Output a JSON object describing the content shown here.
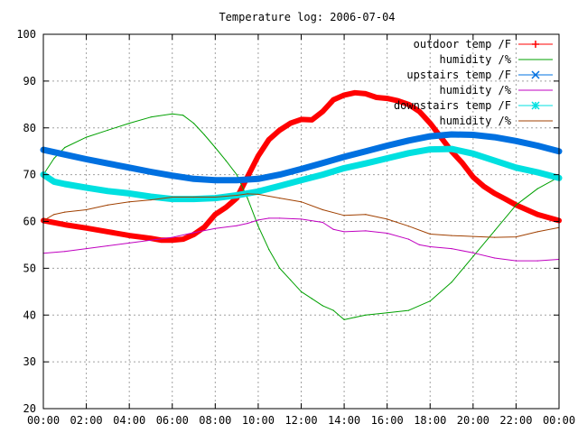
{
  "chart_data": {
    "type": "line",
    "title": "Temperature log: 2006-07-04",
    "xlabel": "",
    "ylabel": "",
    "xlim": [
      0,
      24
    ],
    "ylim": [
      20,
      100
    ],
    "grid": true,
    "legend_position": "top-right",
    "x_ticks": [
      "00:00",
      "02:00",
      "04:00",
      "06:00",
      "08:00",
      "10:00",
      "12:00",
      "14:00",
      "16:00",
      "18:00",
      "20:00",
      "22:00",
      "00:00"
    ],
    "y_ticks": [
      20,
      30,
      40,
      50,
      60,
      70,
      80,
      90,
      100
    ],
    "series": [
      {
        "name": "outdoor temp /F",
        "color": "#ff0000",
        "marker": "plus",
        "x": [
          0,
          1,
          2,
          3,
          4,
          5,
          5.5,
          6,
          6.5,
          7,
          7.5,
          8,
          8.5,
          9,
          9.5,
          10,
          10.5,
          11,
          11.5,
          12,
          12.5,
          13,
          13.5,
          14,
          14.5,
          15,
          15.5,
          16,
          16.5,
          17,
          17.5,
          18,
          18.5,
          19,
          19.5,
          20,
          20.5,
          21,
          21.5,
          22,
          23,
          24
        ],
        "values": [
          60.2,
          59.3,
          58.6,
          57.8,
          57,
          56.4,
          56,
          56,
          56.2,
          57.2,
          58.8,
          61.5,
          63,
          65,
          69.5,
          74,
          77.5,
          79.5,
          81,
          81.8,
          81.7,
          83.5,
          86,
          87,
          87.5,
          87.3,
          86.5,
          86.3,
          85.8,
          85,
          83.5,
          81,
          78,
          75,
          72.5,
          69.5,
          67.5,
          66,
          64.8,
          63.5,
          61.5,
          60.2
        ]
      },
      {
        "name": "humidity /%",
        "color": "#00a000",
        "marker": "none",
        "x": [
          0,
          0.5,
          1,
          2,
          3,
          4,
          5,
          6,
          6.5,
          7,
          7.5,
          8,
          8.5,
          9,
          9.5,
          10,
          10.5,
          11,
          11.5,
          12,
          12.5,
          13,
          13.5,
          14,
          14.5,
          15,
          16,
          17,
          18,
          19,
          20,
          21,
          22,
          23,
          24
        ],
        "values": [
          70,
          73.5,
          75.8,
          78,
          79.5,
          81,
          82.3,
          83,
          82.7,
          81,
          78.5,
          75.8,
          73,
          70,
          65,
          59,
          54,
          50,
          47.5,
          45,
          43.5,
          42,
          41,
          39,
          39.5,
          40,
          40.5,
          41,
          43,
          47,
          52.5,
          58,
          63.5,
          67,
          69.5
        ]
      },
      {
        "name": "upstairs temp /F",
        "color": "#0070e0",
        "marker": "cross",
        "x": [
          0,
          1,
          2,
          3,
          4,
          5,
          6,
          7,
          8,
          9,
          10,
          11,
          12,
          13,
          14,
          15,
          16,
          17,
          18,
          19,
          20,
          21,
          22,
          23,
          24
        ],
        "values": [
          75.3,
          74.3,
          73.3,
          72.4,
          71.5,
          70.6,
          69.8,
          69.1,
          68.8,
          68.8,
          69.1,
          70,
          71.2,
          72.5,
          73.8,
          75,
          76.2,
          77.3,
          78.2,
          78.6,
          78.5,
          78,
          77.2,
          76.2,
          75
        ]
      },
      {
        "name": "humidity /%",
        "color": "#c000c0",
        "marker": "none",
        "x": [
          0,
          1,
          2,
          3,
          4,
          5,
          6,
          7,
          8,
          9,
          9.5,
          10,
          10.5,
          11,
          12,
          13,
          13.5,
          14,
          15,
          16,
          17,
          17.5,
          18,
          19,
          20,
          21,
          22,
          23,
          24
        ],
        "values": [
          53.2,
          53.6,
          54.2,
          54.8,
          55.4,
          56,
          56.6,
          57.6,
          58.5,
          59.1,
          59.6,
          60.3,
          60.7,
          60.7,
          60.5,
          59.8,
          58.3,
          57.8,
          58,
          57.5,
          56.2,
          55,
          54.6,
          54.2,
          53.3,
          52.2,
          51.6,
          51.6,
          51.9
        ]
      },
      {
        "name": "downstairs temp /F",
        "color": "#00e0e0",
        "marker": "star",
        "x": [
          0,
          0.5,
          1,
          2,
          3,
          4,
          5,
          6,
          7,
          8,
          9,
          10,
          11,
          12,
          13,
          14,
          15,
          16,
          17,
          18,
          19,
          20,
          21,
          22,
          23,
          24
        ],
        "values": [
          70,
          68.5,
          68,
          67.2,
          66.5,
          66,
          65.3,
          64.8,
          64.8,
          65,
          65.6,
          66.4,
          67.6,
          68.8,
          70,
          71.4,
          72.4,
          73.5,
          74.6,
          75.4,
          75.5,
          74.5,
          73,
          71.5,
          70.5,
          69.3
        ]
      },
      {
        "name": "humidity /%",
        "color": "#a04000",
        "marker": "none",
        "x": [
          0,
          0.5,
          1,
          2,
          3,
          4,
          5,
          6,
          7,
          8,
          9,
          9.5,
          10,
          11,
          12,
          13,
          14,
          15,
          16,
          17,
          18,
          19,
          20,
          21,
          22,
          23,
          24
        ],
        "values": [
          60.2,
          61.5,
          62,
          62.5,
          63.5,
          64.2,
          64.6,
          65.2,
          65.2,
          65.2,
          65.6,
          65.9,
          65.8,
          65,
          64.2,
          62.5,
          61.3,
          61.5,
          60.5,
          59,
          57.3,
          57,
          56.8,
          56.6,
          56.7,
          57.8,
          58.7
        ]
      }
    ]
  }
}
